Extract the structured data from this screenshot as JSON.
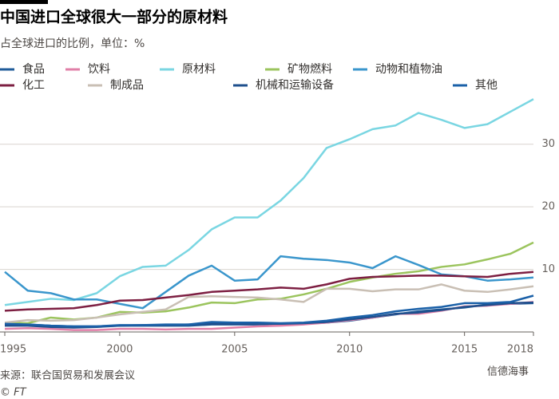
{
  "title": "中国进口全球很大一部分的原材料",
  "source": "来源：联合国贸易和发展会议",
  "credit": "© FT",
  "watermark": "信德海事",
  "chart_data": {
    "type": "line",
    "subtitle": "占全球进口的比例，单位：%",
    "x": [
      1995,
      1996,
      1997,
      1998,
      1999,
      2000,
      2001,
      2002,
      2003,
      2004,
      2005,
      2006,
      2007,
      2008,
      2009,
      2010,
      2011,
      2012,
      2013,
      2014,
      2015,
      2016,
      2017,
      2018
    ],
    "xlim": [
      1995,
      2018
    ],
    "xticks": [
      1995,
      2000,
      2005,
      2010,
      2015,
      2018
    ],
    "ylim": [
      0,
      38
    ],
    "yticks": [
      10,
      20,
      30
    ],
    "grid": true,
    "series": [
      {
        "name": "食品",
        "color": "#1f5b99",
        "values": [
          1.4,
          1.2,
          1.0,
          0.9,
          0.9,
          1.0,
          1.0,
          1.0,
          1.0,
          1.2,
          1.2,
          1.2,
          1.3,
          1.3,
          1.5,
          1.8,
          2.3,
          2.8,
          3.3,
          3.6,
          3.9,
          4.4,
          4.5,
          4.6
        ]
      },
      {
        "name": "饮料",
        "color": "#e07fa7",
        "values": [
          0.5,
          0.6,
          0.5,
          0.3,
          0.3,
          0.5,
          0.5,
          0.4,
          0.5,
          0.5,
          0.7,
          0.9,
          1.0,
          1.2,
          1.5,
          1.9,
          2.3,
          2.9,
          2.9,
          3.4,
          4.1,
          4.2,
          4.5,
          4.8
        ]
      },
      {
        "name": "原材料",
        "color": "#7ad6e2",
        "values": [
          4.3,
          4.8,
          5.3,
          5.1,
          6.2,
          8.9,
          10.4,
          10.6,
          13.1,
          16.4,
          18.3,
          18.3,
          21.0,
          24.6,
          29.4,
          30.8,
          32.4,
          33.0,
          35.0,
          33.9,
          32.6,
          33.2,
          35.2,
          37.2
        ]
      },
      {
        "name": "矿物燃料",
        "color": "#9bc45d",
        "values": [
          1.5,
          1.4,
          2.3,
          2.0,
          2.3,
          3.2,
          3.1,
          3.3,
          3.9,
          4.7,
          4.6,
          5.2,
          5.3,
          6.0,
          6.9,
          8.0,
          8.7,
          9.3,
          9.7,
          10.4,
          10.8,
          11.6,
          12.5,
          14.3
        ]
      },
      {
        "name": "动物和植物油",
        "color": "#3a96cc",
        "values": [
          9.6,
          6.6,
          6.2,
          5.2,
          5.2,
          4.5,
          3.8,
          6.4,
          9.0,
          10.6,
          8.2,
          8.4,
          12.1,
          11.7,
          11.5,
          11.1,
          10.2,
          12.1,
          10.7,
          9.2,
          8.9,
          8.2,
          8.4,
          8.7
        ]
      },
      {
        "name": "化工",
        "color": "#7d1f42",
        "values": [
          3.4,
          3.6,
          3.7,
          3.8,
          4.3,
          5.0,
          5.1,
          5.5,
          5.9,
          6.4,
          6.6,
          6.8,
          7.1,
          6.9,
          7.6,
          8.5,
          8.8,
          8.9,
          9.0,
          9.0,
          8.9,
          8.8,
          9.3,
          9.6
        ]
      },
      {
        "name": "制成品",
        "color": "#c9bfb4",
        "values": [
          1.5,
          1.9,
          1.8,
          1.9,
          2.3,
          2.8,
          3.2,
          3.6,
          5.6,
          5.7,
          5.6,
          5.5,
          5.2,
          4.8,
          6.9,
          6.9,
          6.5,
          6.8,
          6.8,
          7.6,
          6.6,
          6.4,
          6.8,
          7.3
        ]
      },
      {
        "name": "机械和运输设备",
        "color": "#1e4f8c",
        "values": [
          1.0,
          1.0,
          0.8,
          0.7,
          0.8,
          1.0,
          1.1,
          1.1,
          1.2,
          1.3,
          1.3,
          1.3,
          1.3,
          1.4,
          1.6,
          2.0,
          2.4,
          2.9,
          3.1,
          3.5,
          4.0,
          4.3,
          4.6,
          4.7
        ]
      },
      {
        "name": "其他",
        "color": "#1a60a8",
        "values": [
          1.3,
          1.2,
          1.0,
          0.9,
          0.9,
          1.1,
          1.1,
          1.2,
          1.2,
          1.6,
          1.5,
          1.5,
          1.4,
          1.5,
          1.8,
          2.3,
          2.7,
          3.3,
          3.7,
          4.0,
          4.6,
          4.6,
          4.8,
          5.8
        ]
      }
    ]
  }
}
